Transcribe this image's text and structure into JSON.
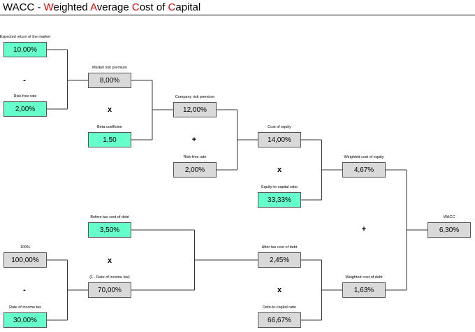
{
  "title": {
    "parts": [
      {
        "text": "WACC - "
      },
      {
        "text": "W",
        "color": "#e00000"
      },
      {
        "text": "eighted "
      },
      {
        "text": "A",
        "color": "#e00000"
      },
      {
        "text": "verage "
      },
      {
        "text": "C",
        "color": "#e00000"
      },
      {
        "text": "ost of "
      },
      {
        "text": "C",
        "color": "#e00000"
      },
      {
        "text": "apital"
      }
    ]
  },
  "nodes": [
    {
      "label": "Expected return of the market",
      "value": "10,00%",
      "color": "#66ffcc"
    },
    {
      "label": "Risk-free rate",
      "value": "2,00%",
      "color": "#66ffcc"
    },
    {
      "label": "Market risk premium",
      "value": "8,00%",
      "color": "#d9d9d9"
    },
    {
      "label": "Beta coefficine",
      "value": "1,50",
      "color": "#66ffcc"
    },
    {
      "label": "Company risk premium",
      "value": "12,00%",
      "color": "#d9d9d9"
    },
    {
      "label": "Risk-free rate",
      "value": "2,00%",
      "color": "#d9d9d9"
    },
    {
      "label": "Cost of equity",
      "value": "14,00%",
      "color": "#d9d9d9"
    },
    {
      "label": "Equity-to-capital ratio",
      "value": "33,33%",
      "color": "#66ffcc"
    },
    {
      "label": "Weighted cost of equity",
      "value": "4,67%",
      "color": "#d9d9d9"
    },
    {
      "label": "WACC",
      "value": "6,30%",
      "color": "#d9d9d9"
    },
    {
      "label": "Before-tax cost of debt",
      "value": "3,50%",
      "color": "#66ffcc"
    },
    {
      "label": "(1 - Rate of income tax)",
      "value": "70,00%",
      "color": "#d9d9d9"
    },
    {
      "label": "100%",
      "value": "100,00%",
      "color": "#d9d9d9"
    },
    {
      "label": "Rate of income tax",
      "value": "30,00%",
      "color": "#66ffcc"
    },
    {
      "label": "After-tax cost of debt",
      "value": "2,45%",
      "color": "#d9d9d9"
    },
    {
      "label": "Debt-to-capital ratio",
      "value": "66,67%",
      "color": "#d9d9d9"
    },
    {
      "label": "Weighted cost of debt",
      "value": "1,63%",
      "color": "#d9d9d9"
    }
  ],
  "operators": [
    "-",
    "x",
    "+",
    "x",
    "+",
    "x",
    "-",
    "x"
  ]
}
